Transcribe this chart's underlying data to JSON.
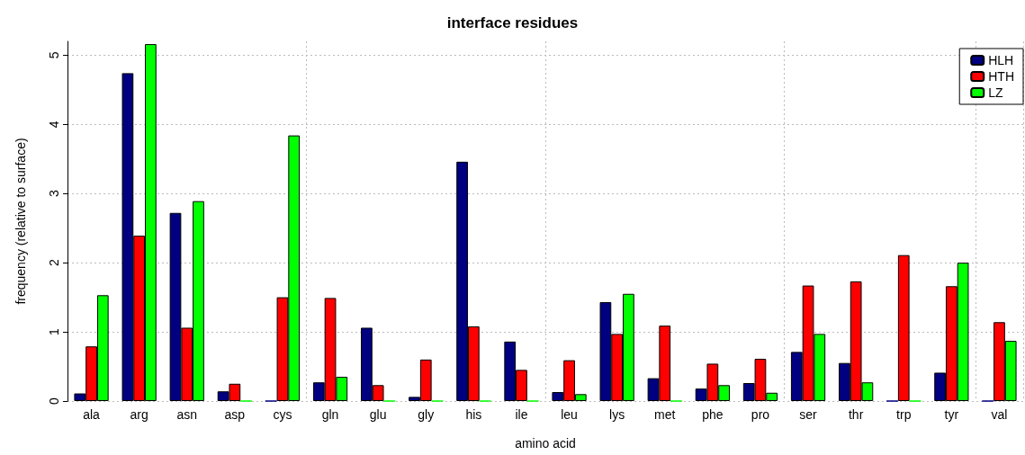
{
  "chart_data": {
    "type": "bar",
    "title": "interface residues",
    "xlabel": "amino acid",
    "ylabel": "frequency (relative to surface)",
    "categories": [
      "ala",
      "arg",
      "asn",
      "asp",
      "cys",
      "gln",
      "glu",
      "gly",
      "his",
      "ile",
      "leu",
      "lys",
      "met",
      "phe",
      "pro",
      "ser",
      "thr",
      "trp",
      "tyr",
      "val"
    ],
    "series": [
      {
        "name": "HLH",
        "color": "#000080",
        "values": [
          0.11,
          4.74,
          2.72,
          0.14,
          0,
          0.27,
          1.06,
          0.06,
          3.46,
          0.86,
          0.13,
          1.43,
          0.33,
          0.18,
          0.26,
          0.71,
          0.55,
          0,
          0.41,
          0
        ]
      },
      {
        "name": "HTH",
        "color": "#ff0000",
        "values": [
          0.79,
          2.39,
          1.06,
          0.25,
          1.5,
          1.49,
          0.23,
          0.6,
          1.08,
          0.45,
          0.59,
          0.97,
          1.09,
          0.54,
          0.61,
          1.67,
          1.73,
          2.11,
          1.66,
          1.14
        ]
      },
      {
        "name": "LZ",
        "color": "#00ff00",
        "values": [
          1.53,
          5.16,
          2.89,
          0,
          3.84,
          0.35,
          0,
          0,
          0,
          0,
          0.1,
          1.55,
          0,
          0.23,
          0.12,
          0.97,
          0.27,
          0,
          2.0,
          0.87
        ]
      }
    ],
    "ylim": [
      0,
      5.2
    ],
    "yticks": [
      0,
      1,
      2,
      3,
      4,
      5
    ],
    "grid": true,
    "legend": "top right"
  }
}
